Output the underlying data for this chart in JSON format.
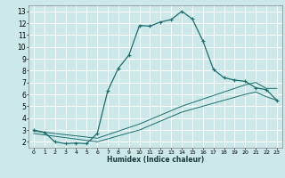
{
  "xlabel": "Humidex (Indice chaleur)",
  "bg_color": "#cce8e8",
  "grid_color": "#b0d0d0",
  "line_color": "#1a6e6e",
  "xlim": [
    -0.5,
    23.5
  ],
  "ylim": [
    1.5,
    13.5
  ],
  "xticks": [
    0,
    1,
    2,
    3,
    4,
    5,
    6,
    7,
    8,
    9,
    10,
    11,
    12,
    13,
    14,
    15,
    16,
    17,
    18,
    19,
    20,
    21,
    22,
    23
  ],
  "yticks": [
    2,
    3,
    4,
    5,
    6,
    7,
    8,
    9,
    10,
    11,
    12,
    13
  ],
  "curve_x": [
    0,
    1,
    2,
    3,
    4,
    5,
    6,
    7,
    8,
    9,
    10,
    11,
    12,
    13,
    14,
    15,
    16,
    17,
    18,
    19,
    20,
    21,
    22,
    23
  ],
  "curve_y": [
    3.0,
    2.8,
    2.0,
    1.85,
    1.9,
    1.85,
    2.7,
    6.3,
    8.2,
    9.3,
    11.8,
    11.75,
    12.1,
    12.3,
    13.0,
    12.35,
    10.5,
    8.1,
    7.4,
    7.2,
    7.1,
    6.55,
    6.4,
    5.5
  ],
  "line1_x": [
    0,
    6,
    10,
    14,
    18,
    20,
    21,
    22,
    23
  ],
  "line1_y": [
    2.9,
    2.3,
    3.5,
    5.0,
    6.2,
    6.8,
    7.0,
    6.5,
    6.5
  ],
  "line2_x": [
    0,
    6,
    10,
    14,
    18,
    20,
    21,
    22,
    23
  ],
  "line2_y": [
    2.7,
    2.0,
    3.0,
    4.5,
    5.5,
    6.0,
    6.2,
    5.8,
    5.5
  ]
}
